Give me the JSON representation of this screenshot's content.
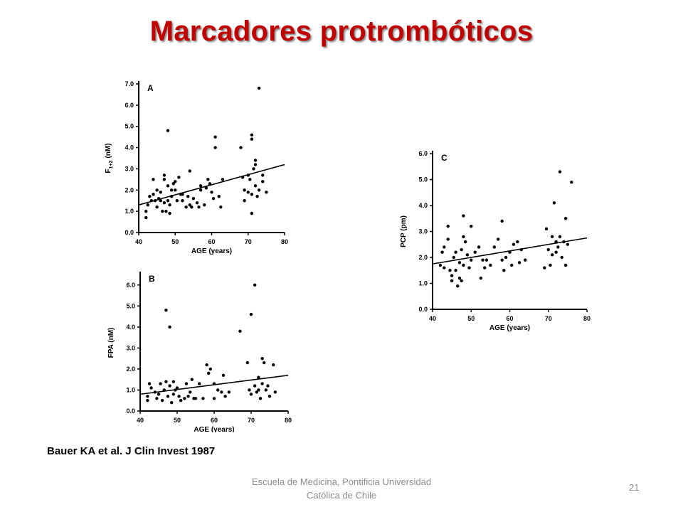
{
  "slide": {
    "title": "Marcadores protrombóticos",
    "citation": "Bauer KA et al. J Clin Invest 1987",
    "footer": "Escuela de Medicina, Pontificia Universidad Católica de Chile",
    "page_number": "21",
    "title_color": "#c00000"
  },
  "chart_data": [
    {
      "id": "A",
      "type": "scatter",
      "panel_label": "A",
      "xlabel": "AGE (years)",
      "ylabel_main": "F",
      "ylabel_sub": "1+2",
      "ylabel_unit": "(nM)",
      "xlim": [
        40,
        80
      ],
      "ylim": [
        0,
        7
      ],
      "xticks": [
        "40",
        "50",
        "60",
        "70",
        "80"
      ],
      "yticks": [
        "0.0",
        "1.0",
        "2.0",
        "3.0",
        "4.0",
        "5.0",
        "6.0",
        "7.0"
      ],
      "grid": false,
      "regression": {
        "x": [
          40,
          80
        ],
        "y": [
          1.3,
          3.2
        ]
      },
      "points": [
        [
          42,
          1.0
        ],
        [
          42,
          0.7
        ],
        [
          42.5,
          1.3
        ],
        [
          43,
          1.7
        ],
        [
          43.5,
          1.5
        ],
        [
          44,
          2.5
        ],
        [
          44,
          1.8
        ],
        [
          44.5,
          1.5
        ],
        [
          45,
          2.0
        ],
        [
          45,
          1.2
        ],
        [
          45.5,
          1.6
        ],
        [
          46,
          1.9
        ],
        [
          46,
          1.5
        ],
        [
          46.5,
          1.0
        ],
        [
          47,
          2.7
        ],
        [
          47,
          2.5
        ],
        [
          47,
          1.4
        ],
        [
          47.5,
          1.0
        ],
        [
          48,
          4.8
        ],
        [
          48,
          2.2
        ],
        [
          48,
          1.5
        ],
        [
          48.5,
          1.3
        ],
        [
          48.5,
          0.9
        ],
        [
          49,
          2.0
        ],
        [
          49,
          1.7
        ],
        [
          49.5,
          2.3
        ],
        [
          50,
          2.4
        ],
        [
          50,
          2.0
        ],
        [
          50.5,
          1.5
        ],
        [
          51,
          2.6
        ],
        [
          51.5,
          1.8
        ],
        [
          52,
          1.8
        ],
        [
          52,
          1.5
        ],
        [
          53,
          1.2
        ],
        [
          53.5,
          1.7
        ],
        [
          54,
          2.9
        ],
        [
          54,
          1.3
        ],
        [
          54.5,
          1.2
        ],
        [
          55,
          1.6
        ],
        [
          56,
          1.4
        ],
        [
          56.5,
          1.2
        ],
        [
          57,
          2.2
        ],
        [
          57,
          2.0
        ],
        [
          58,
          1.3
        ],
        [
          58.5,
          2.1
        ],
        [
          59,
          2.5
        ],
        [
          59.5,
          2.3
        ],
        [
          60,
          1.9
        ],
        [
          60.5,
          1.6
        ],
        [
          61,
          4.5
        ],
        [
          61,
          4.0
        ],
        [
          62,
          1.7
        ],
        [
          62.5,
          1.2
        ],
        [
          63,
          2.5
        ],
        [
          68,
          4.0
        ],
        [
          68.5,
          2.6
        ],
        [
          69,
          2.0
        ],
        [
          69,
          1.5
        ],
        [
          70,
          2.7
        ],
        [
          70,
          1.9
        ],
        [
          70.5,
          2.5
        ],
        [
          71,
          4.6
        ],
        [
          71,
          4.4
        ],
        [
          71,
          1.8
        ],
        [
          71,
          0.9
        ],
        [
          71.5,
          3.0
        ],
        [
          72,
          3.4
        ],
        [
          72,
          3.2
        ],
        [
          72,
          2.2
        ],
        [
          72.5,
          1.7
        ],
        [
          73,
          6.8
        ],
        [
          73,
          2.0
        ],
        [
          74,
          2.4
        ],
        [
          74,
          2.7
        ],
        [
          75,
          1.9
        ]
      ]
    },
    {
      "id": "B",
      "type": "scatter",
      "panel_label": "B",
      "xlabel": "AGE (years)",
      "ylabel": "FPA (nM)",
      "xlim": [
        40,
        80
      ],
      "ylim": [
        0,
        6.5
      ],
      "xticks": [
        "40",
        "50",
        "60",
        "70",
        "80"
      ],
      "yticks": [
        "0.0",
        "1.0",
        "2.0",
        "3.0",
        "4.0",
        "5.0",
        "6.0"
      ],
      "grid": false,
      "regression": {
        "x": [
          40,
          80
        ],
        "y": [
          0.8,
          1.7
        ]
      },
      "points": [
        [
          42,
          0.7
        ],
        [
          42,
          0.5
        ],
        [
          42.5,
          1.3
        ],
        [
          43,
          1.1
        ],
        [
          44,
          0.9
        ],
        [
          44.5,
          0.6
        ],
        [
          45,
          0.8
        ],
        [
          45.5,
          1.3
        ],
        [
          46,
          0.5
        ],
        [
          46.5,
          1.0
        ],
        [
          47,
          4.8
        ],
        [
          47,
          1.4
        ],
        [
          47.5,
          0.7
        ],
        [
          48,
          4.0
        ],
        [
          48,
          1.2
        ],
        [
          48.5,
          0.4
        ],
        [
          49,
          1.4
        ],
        [
          49,
          0.8
        ],
        [
          49.5,
          1.0
        ],
        [
          50,
          1.1
        ],
        [
          50.5,
          0.7
        ],
        [
          51,
          0.5
        ],
        [
          52,
          0.6
        ],
        [
          52.5,
          1.3
        ],
        [
          53,
          0.7
        ],
        [
          53.5,
          0.9
        ],
        [
          54,
          1.5
        ],
        [
          54.5,
          0.6
        ],
        [
          55,
          0.6
        ],
        [
          56,
          1.3
        ],
        [
          57,
          0.6
        ],
        [
          58,
          2.2
        ],
        [
          58.5,
          1.8
        ],
        [
          59,
          2.0
        ],
        [
          60,
          1.3
        ],
        [
          60,
          0.6
        ],
        [
          61,
          1.0
        ],
        [
          62,
          0.9
        ],
        [
          62.5,
          1.7
        ],
        [
          63,
          0.7
        ],
        [
          64,
          0.9
        ],
        [
          67,
          3.8
        ],
        [
          69,
          2.3
        ],
        [
          69.5,
          1.0
        ],
        [
          70,
          0.8
        ],
        [
          70,
          4.6
        ],
        [
          71,
          6.0
        ],
        [
          71,
          1.2
        ],
        [
          71.5,
          0.9
        ],
        [
          72,
          1.0
        ],
        [
          72,
          1.6
        ],
        [
          72.5,
          0.6
        ],
        [
          73,
          1.3
        ],
        [
          73,
          2.5
        ],
        [
          73.5,
          2.3
        ],
        [
          74,
          1.0
        ],
        [
          74.5,
          1.2
        ],
        [
          75,
          0.7
        ],
        [
          76,
          2.2
        ],
        [
          76.5,
          0.9
        ]
      ]
    },
    {
      "id": "C",
      "type": "scatter",
      "panel_label": "C",
      "xlabel": "AGE (years)",
      "ylabel": "PCP (pm)",
      "xlim": [
        40,
        80
      ],
      "ylim": [
        0,
        6
      ],
      "xticks": [
        "40",
        "50",
        "60",
        "70",
        "80"
      ],
      "yticks": [
        "0.0",
        "1.0",
        "2.0",
        "3.0",
        "4.0",
        "5.0",
        "6.0"
      ],
      "grid": false,
      "regression": {
        "x": [
          40,
          80
        ],
        "y": [
          1.75,
          2.75
        ]
      },
      "points": [
        [
          42,
          1.7
        ],
        [
          42.5,
          2.2
        ],
        [
          43,
          2.4
        ],
        [
          43,
          1.6
        ],
        [
          44,
          3.2
        ],
        [
          44,
          2.7
        ],
        [
          44.5,
          1.5
        ],
        [
          45,
          1.3
        ],
        [
          45,
          1.1
        ],
        [
          45.5,
          2.0
        ],
        [
          46,
          2.2
        ],
        [
          46,
          1.5
        ],
        [
          46.5,
          0.9
        ],
        [
          47,
          1.8
        ],
        [
          47,
          1.2
        ],
        [
          47.5,
          2.3
        ],
        [
          47.5,
          1.1
        ],
        [
          48,
          3.6
        ],
        [
          48,
          2.8
        ],
        [
          48,
          1.7
        ],
        [
          48.5,
          2.6
        ],
        [
          49,
          2.1
        ],
        [
          49.5,
          1.6
        ],
        [
          50,
          3.2
        ],
        [
          50,
          1.9
        ],
        [
          51,
          2.2
        ],
        [
          52,
          2.4
        ],
        [
          52.5,
          1.2
        ],
        [
          53,
          1.9
        ],
        [
          53.5,
          1.6
        ],
        [
          54,
          1.9
        ],
        [
          55,
          1.7
        ],
        [
          56,
          2.4
        ],
        [
          57,
          2.7
        ],
        [
          58,
          3.4
        ],
        [
          58,
          1.9
        ],
        [
          58.5,
          1.5
        ],
        [
          59,
          2.0
        ],
        [
          60,
          2.2
        ],
        [
          60.5,
          1.7
        ],
        [
          61,
          2.5
        ],
        [
          62,
          2.6
        ],
        [
          62.5,
          1.8
        ],
        [
          63,
          2.3
        ],
        [
          64,
          1.9
        ],
        [
          69,
          1.6
        ],
        [
          69.5,
          3.1
        ],
        [
          70,
          2.3
        ],
        [
          70.5,
          1.7
        ],
        [
          71,
          2.8
        ],
        [
          71,
          2.1
        ],
        [
          71.5,
          4.1
        ],
        [
          72,
          2.6
        ],
        [
          72,
          2.2
        ],
        [
          72.5,
          2.4
        ],
        [
          73,
          5.3
        ],
        [
          73,
          2.8
        ],
        [
          73.5,
          2.0
        ],
        [
          74,
          2.6
        ],
        [
          74.5,
          3.5
        ],
        [
          74.5,
          1.7
        ],
        [
          75,
          2.5
        ],
        [
          76,
          4.9
        ]
      ]
    }
  ]
}
